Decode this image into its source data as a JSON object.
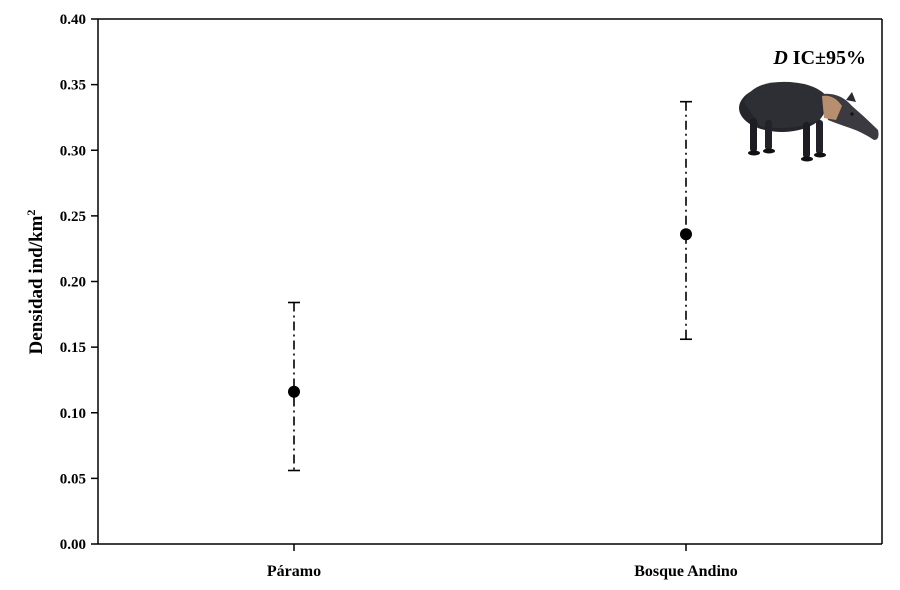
{
  "chart_data": {
    "type": "scatter",
    "title": "",
    "xlabel": "",
    "ylabel": "Densidad ind/km",
    "ylabel_superscript": "2",
    "ylim": [
      0,
      0.4
    ],
    "yticks": [
      "0.00",
      "0.05",
      "0.10",
      "0.15",
      "0.20",
      "0.25",
      "0.30",
      "0.35",
      "0.40"
    ],
    "grid": false,
    "categories": [
      "Páramo",
      "Bosque Andino"
    ],
    "series": [
      {
        "values": [
          0.116,
          0.236
        ],
        "ci_lower": [
          0.056,
          0.156
        ],
        "ci_upper": [
          0.184,
          0.337
        ]
      }
    ],
    "legend": {
      "symbol": "D",
      "text": " IC±95%",
      "placement": "top-right",
      "image": "tapir-illustration"
    },
    "colors": {
      "points": "#000000",
      "axes": "#000000",
      "background": "#ffffff"
    }
  }
}
